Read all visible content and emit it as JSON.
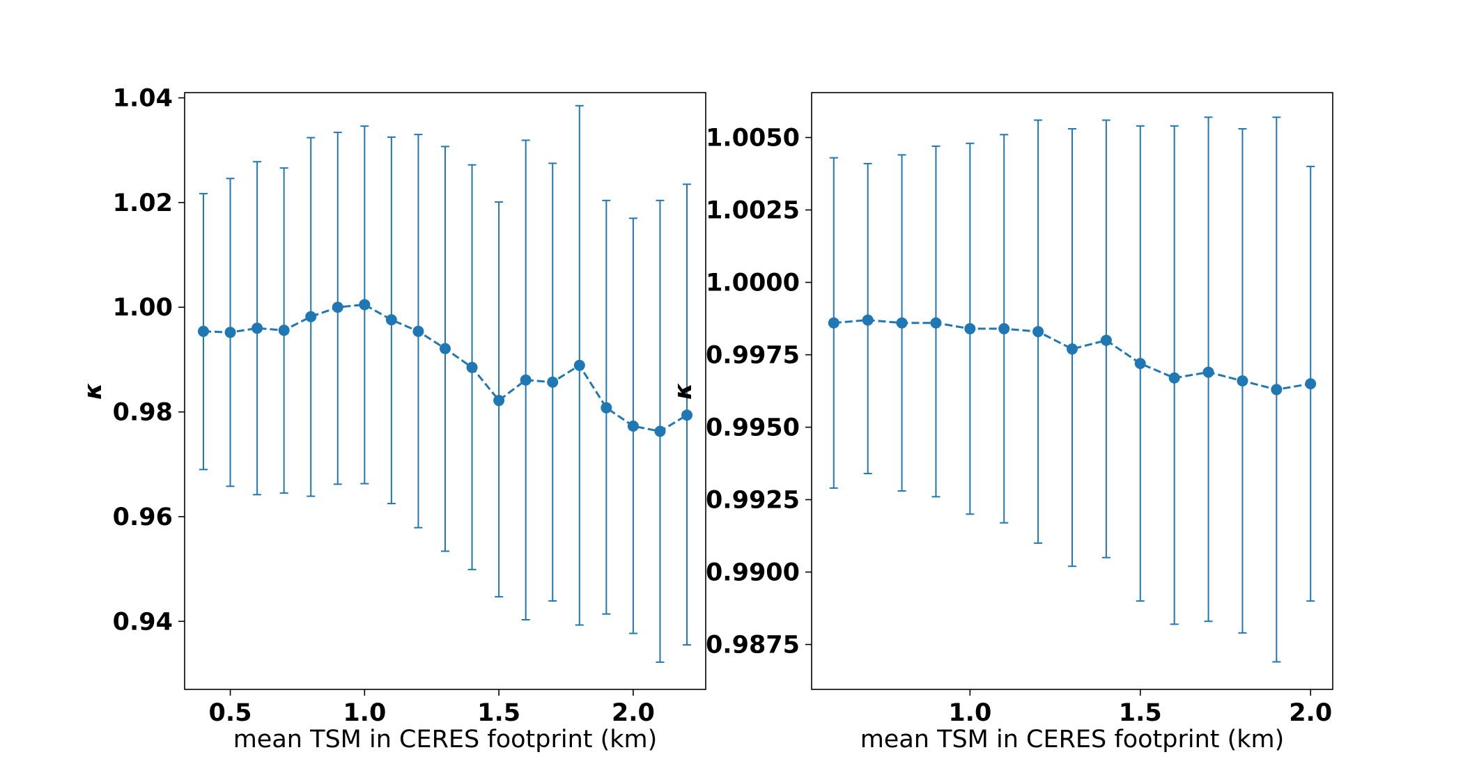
{
  "chart_data": [
    {
      "type": "line",
      "style": "dashed line with markers and error bars",
      "color": "#1f77b4",
      "xlabel": "mean TSM in CERES footprint (km)",
      "ylabel": "κ",
      "xlim": [
        0.33,
        2.27
      ],
      "ylim": [
        0.927,
        1.041
      ],
      "xticks": [
        0.5,
        1.0,
        1.5,
        2.0
      ],
      "xtick_labels": [
        "0.5",
        "1.0",
        "1.5",
        "2.0"
      ],
      "yticks": [
        0.94,
        0.96,
        0.98,
        1.0,
        1.02,
        1.04
      ],
      "ytick_labels": [
        "0.94",
        "0.96",
        "0.98",
        "1.00",
        "1.02",
        "1.04"
      ],
      "grid": false,
      "series": [
        {
          "x": [
            0.4,
            0.5,
            0.6,
            0.7,
            0.8,
            0.9,
            1.0,
            1.1,
            1.2,
            1.3,
            1.4,
            1.5,
            1.6,
            1.7,
            1.8,
            1.9,
            2.0,
            2.1,
            2.2
          ],
          "y": [
            0.9954,
            0.9952,
            0.996,
            0.9956,
            0.9982,
            1.0,
            1.0005,
            0.9976,
            0.9954,
            0.9921,
            0.9885,
            0.9822,
            0.9861,
            0.9857,
            0.9889,
            0.9808,
            0.9773,
            0.9763,
            0.9794
          ],
          "y_upper": [
            1.0217,
            1.0246,
            1.0278,
            1.0266,
            1.0324,
            1.0334,
            1.0346,
            1.0325,
            1.033,
            1.0307,
            1.0272,
            1.0201,
            1.0319,
            1.0275,
            1.0385,
            1.0204,
            1.017,
            1.0204,
            1.0235
          ],
          "y_lower": [
            0.969,
            0.9658,
            0.9642,
            0.9645,
            0.9639,
            0.9662,
            0.9663,
            0.9625,
            0.9579,
            0.9534,
            0.9499,
            0.9447,
            0.9403,
            0.9439,
            0.9393,
            0.9414,
            0.9377,
            0.9322,
            0.9355
          ]
        }
      ]
    },
    {
      "type": "line",
      "style": "dashed line with markers and error bars",
      "color": "#1f77b4",
      "xlabel": "mean TSM in CERES footprint (km)",
      "ylabel": "κ",
      "xlim": [
        0.535,
        2.065
      ],
      "ylim": [
        0.98595,
        1.00655
      ],
      "xticks": [
        1.0,
        1.5,
        2.0
      ],
      "xtick_labels": [
        "1.0",
        "1.5",
        "2.0"
      ],
      "yticks": [
        0.9875,
        0.99,
        0.9925,
        0.995,
        0.9975,
        1.0,
        1.0025,
        1.005
      ],
      "ytick_labels": [
        "0.9875",
        "0.9900",
        "0.9925",
        "0.9950",
        "0.9975",
        "1.0000",
        "1.0025",
        "1.0050"
      ],
      "grid": false,
      "series": [
        {
          "x": [
            0.6,
            0.7,
            0.8,
            0.9,
            1.0,
            1.1,
            1.2,
            1.3,
            1.4,
            1.5,
            1.6,
            1.7,
            1.8,
            1.9,
            2.0
          ],
          "y": [
            0.9986,
            0.9987,
            0.9986,
            0.9986,
            0.9984,
            0.9984,
            0.9983,
            0.9977,
            0.998,
            0.9972,
            0.9967,
            0.9969,
            0.9966,
            0.9963,
            0.9965
          ],
          "y_upper": [
            1.0043,
            1.0041,
            1.0044,
            1.0047,
            1.0048,
            1.0051,
            1.0056,
            1.0053,
            1.0056,
            1.0054,
            1.0054,
            1.0057,
            1.0053,
            1.0057,
            1.004
          ],
          "y_lower": [
            0.9929,
            0.9934,
            0.9928,
            0.9926,
            0.992,
            0.9917,
            0.991,
            0.9902,
            0.9905,
            0.989,
            0.9882,
            0.9883,
            0.9879,
            0.9869,
            0.989
          ]
        }
      ]
    }
  ]
}
